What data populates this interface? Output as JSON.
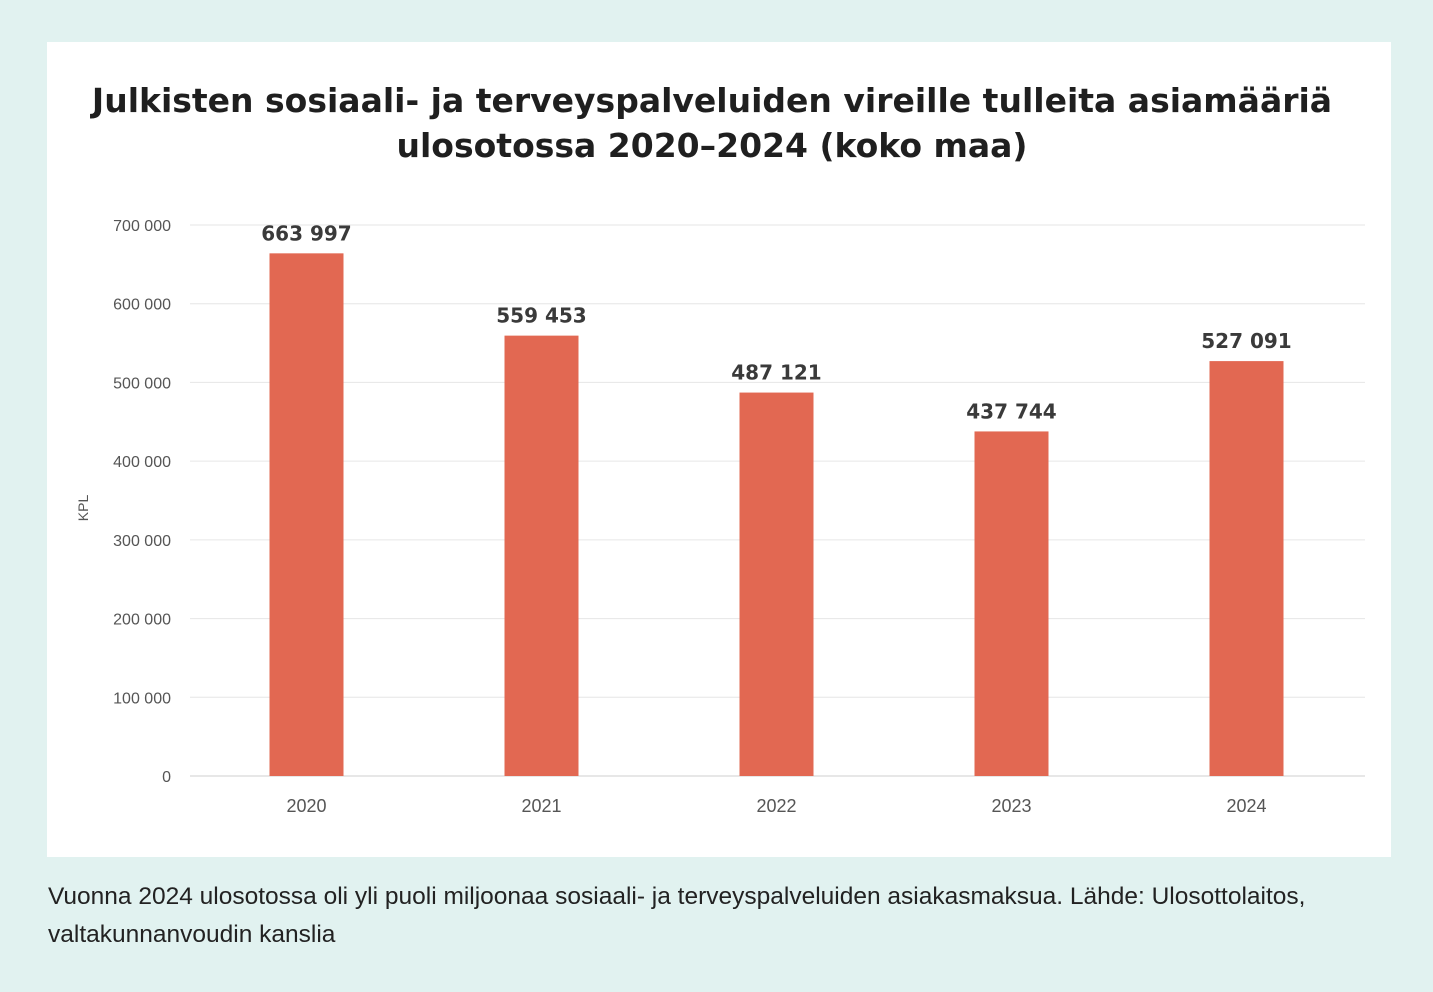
{
  "chart_data": {
    "type": "bar",
    "title": "Julkisten sosiaali- ja terveyspalveluiden vireille tulleita asiamääriä ulosotossa 2020–2024 (koko maa)",
    "xlabel": "",
    "ylabel": "KPL",
    "categories": [
      "2020",
      "2021",
      "2022",
      "2023",
      "2024"
    ],
    "values": [
      663997,
      559453,
      487121,
      437744,
      527091
    ],
    "data_labels": [
      "663 997",
      "559 453",
      "487 121",
      "437 744",
      "527 091"
    ],
    "ylim": [
      0,
      700000
    ],
    "yticks": [
      0,
      100000,
      200000,
      300000,
      400000,
      500000,
      600000,
      700000
    ],
    "ytick_labels": [
      "0",
      "100 000",
      "200 000",
      "300 000",
      "400 000",
      "500 000",
      "600 000",
      "700 000"
    ],
    "grid": true,
    "bar_color": "#e26852"
  },
  "caption": "Vuonna 2024 ulosotossa oli yli puoli miljoonaa sosiaali- ja terveyspalveluiden asiakasmaksua. Lähde: Ulos­ottolaitos, valtakunnanvoudin kanslia"
}
